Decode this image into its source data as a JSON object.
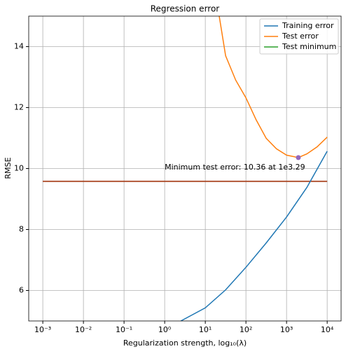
{
  "chart_data": {
    "type": "line",
    "title": "Regression error",
    "xlabel": "Regularization strength, log₁₀(λ)",
    "ylabel": "RMSE",
    "xscale": "log",
    "grid": true,
    "legend": "upper right",
    "xlim": [
      0.00045,
      22000
    ],
    "ylim": [
      5,
      15
    ],
    "xticks": [
      {
        "value": 0.001,
        "label": "10⁻³"
      },
      {
        "value": 0.01,
        "label": "10⁻²"
      },
      {
        "value": 0.1,
        "label": "10⁻¹"
      },
      {
        "value": 1,
        "label": "10⁰"
      },
      {
        "value": 10,
        "label": "10¹"
      },
      {
        "value": 100,
        "label": "10²"
      },
      {
        "value": 1000,
        "label": "10³"
      },
      {
        "value": 10000,
        "label": "10⁴"
      }
    ],
    "yticks": [
      6,
      8,
      10,
      12,
      14
    ],
    "series": [
      {
        "name": "Training error",
        "color": "#1f77b4",
        "x": [
          2.5,
          10,
          31.6,
          100,
          316,
          1000,
          3162,
          10000
        ],
        "values": [
          5.0,
          5.43,
          6.02,
          6.76,
          7.56,
          8.41,
          9.38,
          10.57
        ]
      },
      {
        "name": "Test error",
        "color": "#ff7f0e",
        "x": [
          22,
          31.6,
          56,
          100,
          178,
          316,
          562,
          1000,
          1950,
          3162,
          5623,
          10000
        ],
        "values": [
          15,
          13.7,
          12.9,
          12.32,
          11.6,
          10.99,
          10.65,
          10.44,
          10.36,
          10.48,
          10.71,
          11.03
        ]
      },
      {
        "name": "Test minimum",
        "color": "#2ca02c",
        "point_color": "#9467bd",
        "x": [
          1950
        ],
        "values": [
          10.36
        ]
      }
    ],
    "hline": {
      "value": 9.58,
      "x": [
        0.001,
        10000
      ],
      "color": "#a8401c"
    },
    "annotation": {
      "text": "Minimum test error: 10.36 at 1e3.29",
      "x": 1,
      "y": 10.03
    }
  }
}
